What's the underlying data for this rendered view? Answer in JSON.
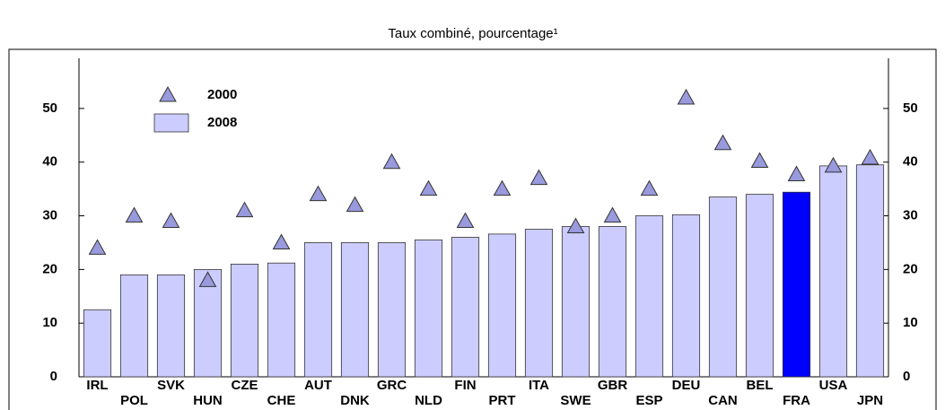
{
  "chart_data": {
    "type": "bar",
    "title": "Taux combiné, pourcentage¹",
    "categories": [
      "IRL",
      "POL",
      "SVK",
      "HUN",
      "CZE",
      "CHE",
      "AUT",
      "DNK",
      "GRC",
      "NLD",
      "FIN",
      "PRT",
      "ITA",
      "SWE",
      "GBR",
      "ESP",
      "DEU",
      "CAN",
      "BEL",
      "FRA",
      "USA",
      "JPN"
    ],
    "series": [
      {
        "name": "2000",
        "marker": "triangle",
        "color": "#9999dd",
        "values": [
          24,
          30,
          29,
          18,
          31,
          25,
          34,
          32,
          40,
          35,
          29,
          35,
          37,
          28,
          30,
          35,
          52,
          43.5,
          40.2,
          37.7,
          39.3,
          40.8
        ]
      },
      {
        "name": "2008",
        "marker": "bar",
        "color": "#ccccff",
        "colors": [
          "#ccccff",
          "#ccccff",
          "#ccccff",
          "#ccccff",
          "#ccccff",
          "#ccccff",
          "#ccccff",
          "#ccccff",
          "#ccccff",
          "#ccccff",
          "#ccccff",
          "#ccccff",
          "#ccccff",
          "#ccccff",
          "#ccccff",
          "#ccccff",
          "#ccccff",
          "#ccccff",
          "#ccccff",
          "#0000ff",
          "#ccccff",
          "#ccccff"
        ],
        "values": [
          12.5,
          19,
          19,
          20,
          21,
          21.2,
          25,
          25,
          25,
          25.5,
          26,
          26.6,
          27.5,
          28,
          28,
          30,
          30.2,
          33.5,
          34,
          34.4,
          39.3,
          39.5
        ]
      }
    ],
    "ylim": [
      0,
      55
    ],
    "yticks": [
      0,
      10,
      20,
      30,
      40,
      50
    ],
    "grid": false,
    "legend": "top-left"
  }
}
